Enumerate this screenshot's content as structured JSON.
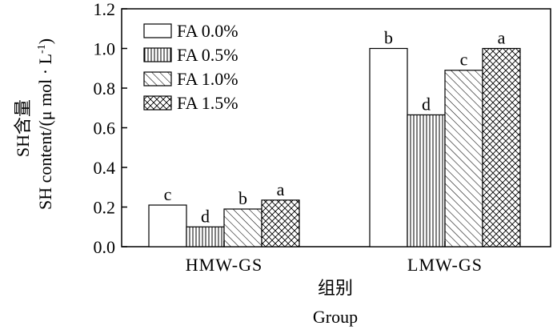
{
  "chart_data": {
    "type": "bar",
    "categories": [
      "HMW-GS",
      "LMW-GS"
    ],
    "series": [
      {
        "name": "FA 0.0%",
        "pattern": "solid",
        "values": [
          0.21,
          1.0
        ],
        "letters": [
          "c",
          "b"
        ]
      },
      {
        "name": "FA 0.5%",
        "pattern": "vertical",
        "values": [
          0.1,
          0.665
        ],
        "letters": [
          "d",
          "d"
        ]
      },
      {
        "name": "FA 1.0%",
        "pattern": "diagonal",
        "values": [
          0.19,
          0.89
        ],
        "letters": [
          "b",
          "c"
        ]
      },
      {
        "name": "FA 1.5%",
        "pattern": "crosshatch",
        "values": [
          0.235,
          1.0
        ],
        "letters": [
          "a",
          "a"
        ]
      }
    ],
    "yticks": [
      "0.0",
      "0.2",
      "0.4",
      "0.6",
      "0.8",
      "1.0",
      "1.2"
    ],
    "ylim": [
      0,
      1.2
    ],
    "ylabel_cn": "SH含量",
    "ylabel_en": "SH content/(μ mol · L",
    "ylabel_sup": "-1",
    "ylabel_close": ")",
    "xlabel_cn": "组别",
    "xlabel_en": "Group",
    "legend_position": "top-left",
    "grid": false
  }
}
